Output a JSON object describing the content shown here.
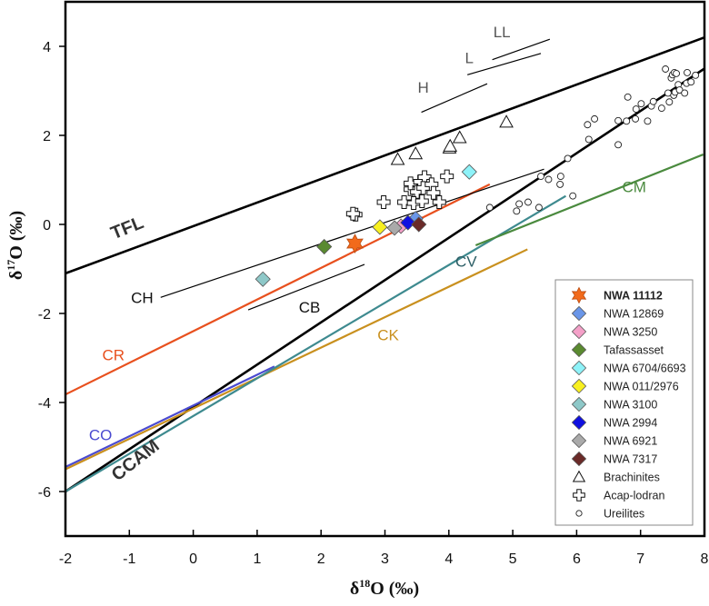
{
  "chart_data": {
    "type": "scatter",
    "title": "",
    "xlabel": "δ18O (‰)",
    "ylabel": "δ17O (‰)",
    "xlabel_main": "δ",
    "xlabel_sup": "18",
    "xlabel_tail": "O (‰)",
    "ylabel_main": "δ",
    "ylabel_sup": "17",
    "ylabel_tail": "O (‰)",
    "xlim": [
      -2,
      8
    ],
    "ylim": [
      -7,
      5
    ],
    "xticks": [
      -2,
      -1,
      0,
      1,
      2,
      3,
      4,
      5,
      6,
      7,
      8
    ],
    "yticks": [
      -6,
      -4,
      -2,
      0,
      2,
      4
    ],
    "grid": false,
    "legend_position": "bottom-right",
    "lines": [
      {
        "name": "TFL",
        "label": "TFL",
        "color": "#000000",
        "bold": true,
        "x": [
          -2,
          8
        ],
        "y": [
          -1.1,
          4.2
        ]
      },
      {
        "name": "CCAM",
        "label": "CCAM",
        "color": "#000000",
        "bold": true,
        "x": [
          -2,
          8
        ],
        "y": [
          -6.0,
          3.5
        ]
      },
      {
        "name": "CR",
        "label": "CR",
        "color": "#e8501e",
        "x": [
          -2,
          4.64
        ],
        "y": [
          -3.82,
          0.9
        ]
      },
      {
        "name": "CO",
        "label": "CO",
        "color": "#4a4ad0",
        "x": [
          -2,
          1.27
        ],
        "y": [
          -5.45,
          -3.19
        ]
      },
      {
        "name": "CK",
        "label": "CK",
        "color": "#c9901e",
        "x": [
          -2,
          5.23
        ],
        "y": [
          -5.5,
          -0.56
        ]
      },
      {
        "name": "CV",
        "label": "CV",
        "color": "#3e8a8f",
        "x": [
          -2,
          5.83
        ],
        "y": [
          -6.0,
          0.64
        ]
      },
      {
        "name": "CM",
        "label": "CM",
        "color": "#4a8a3e",
        "x": [
          4.42,
          7.98
        ],
        "y": [
          -0.47,
          1.57
        ]
      },
      {
        "name": "CH",
        "label": "CH",
        "color": "#000000",
        "thin": true,
        "x": [
          -0.51,
          5.49
        ],
        "y": [
          -1.64,
          1.24
        ]
      },
      {
        "name": "CB",
        "label": "CB",
        "color": "#000000",
        "thin": true,
        "x": [
          0.86,
          2.68
        ],
        "y": [
          -1.92,
          -0.9
        ]
      },
      {
        "name": "H",
        "label": "H",
        "color": "#000000",
        "thin": true,
        "x": [
          3.57,
          4.6
        ],
        "y": [
          2.52,
          3.16
        ]
      },
      {
        "name": "L",
        "label": "L",
        "color": "#000000",
        "thin": true,
        "x": [
          4.29,
          5.44
        ],
        "y": [
          3.36,
          3.84
        ]
      },
      {
        "name": "LL",
        "label": "LL",
        "color": "#000000",
        "thin": true,
        "x": [
          4.68,
          5.58
        ],
        "y": [
          3.7,
          4.16
        ]
      }
    ],
    "line_labels": [
      {
        "text": "TFL",
        "x": -1.0,
        "y": -0.2,
        "color": "#333333",
        "bold": true,
        "rotate": -22
      },
      {
        "text": "CCAM",
        "x": -0.85,
        "y": -5.4,
        "color": "#333333",
        "bold": true,
        "rotate": -38
      },
      {
        "text": "CR",
        "x": -1.25,
        "y": -3.05,
        "color": "#e8501e"
      },
      {
        "text": "CO",
        "x": -1.45,
        "y": -4.85,
        "color": "#4a4ad0"
      },
      {
        "text": "CK",
        "x": 3.05,
        "y": -2.6,
        "color": "#c9901e"
      },
      {
        "text": "CV",
        "x": 4.27,
        "y": -0.95,
        "color": "#2d5f66"
      },
      {
        "text": "CM",
        "x": 6.9,
        "y": 0.72,
        "color": "#4a8a3e"
      },
      {
        "text": "CH",
        "x": -0.8,
        "y": -1.77,
        "color": "#111111"
      },
      {
        "text": "CB",
        "x": 1.82,
        "y": -1.98,
        "color": "#111111"
      },
      {
        "text": "H",
        "x": 3.6,
        "y": 2.96,
        "color": "#555555"
      },
      {
        "text": "L",
        "x": 4.32,
        "y": 3.62,
        "color": "#555555"
      },
      {
        "text": "LL",
        "x": 4.83,
        "y": 4.2,
        "color": "#555555"
      }
    ],
    "series": [
      {
        "name": "NWA 11112",
        "marker": "star",
        "color": "#f26a1b",
        "bold": true,
        "points": [
          [
            2.53,
            -0.43
          ]
        ]
      },
      {
        "name": "NWA 12869",
        "marker": "diamond",
        "color": "#6a96e8",
        "points": [
          [
            3.48,
            0.13
          ]
        ]
      },
      {
        "name": "NWA 3250",
        "marker": "diamond",
        "color": "#f4a0c8",
        "points": [
          [
            3.25,
            -0.04
          ]
        ]
      },
      {
        "name": "Tafassasset",
        "marker": "diamond",
        "color": "#5a8a30",
        "points": [
          [
            2.05,
            -0.5
          ]
        ]
      },
      {
        "name": "NWA 6704/6693",
        "marker": "diamond",
        "color": "#8ef2f8",
        "points": [
          [
            4.32,
            1.18
          ]
        ]
      },
      {
        "name": "NWA 011/2976",
        "marker": "diamond",
        "color": "#f8f020",
        "points": [
          [
            2.92,
            -0.06
          ]
        ]
      },
      {
        "name": "NWA 3100",
        "marker": "diamond",
        "color": "#8ec8c8",
        "points": [
          [
            1.09,
            -1.23
          ]
        ]
      },
      {
        "name": "NWA 2994",
        "marker": "diamond",
        "color": "#1010e0",
        "points": [
          [
            3.36,
            0.04
          ]
        ]
      },
      {
        "name": "NWA 6921",
        "marker": "diamond",
        "color": "#aaaaaa",
        "points": [
          [
            3.15,
            -0.08
          ]
        ]
      },
      {
        "name": "NWA 7317",
        "marker": "diamond",
        "color": "#6a2a28",
        "points": [
          [
            3.53,
            0.0
          ]
        ]
      },
      {
        "name": "Brachinites",
        "marker": "triangle",
        "color": "#ffffff",
        "points": [
          [
            3.2,
            1.46
          ],
          [
            3.48,
            1.59
          ],
          [
            4.01,
            1.72
          ],
          [
            4.02,
            1.76
          ],
          [
            4.17,
            1.95
          ],
          [
            4.9,
            2.3
          ]
        ]
      },
      {
        "name": "Acap-lodran",
        "marker": "cross",
        "color": "#ffffff",
        "points": [
          [
            2.54,
            0.22
          ],
          [
            2.5,
            0.24
          ],
          [
            2.98,
            0.5
          ],
          [
            3.3,
            0.5
          ],
          [
            3.4,
            0.79
          ],
          [
            3.4,
            0.92
          ],
          [
            3.5,
            0.73
          ],
          [
            3.55,
            0.96
          ],
          [
            3.62,
            1.06
          ],
          [
            3.6,
            0.82
          ],
          [
            3.73,
            0.9
          ],
          [
            3.76,
            0.71
          ],
          [
            3.45,
            0.48
          ],
          [
            3.58,
            0.52
          ],
          [
            3.85,
            0.5
          ],
          [
            3.97,
            1.08
          ]
        ]
      },
      {
        "name": "Ureilites",
        "marker": "circle",
        "color": "#ffffff",
        "points": [
          [
            4.64,
            0.38
          ],
          [
            5.06,
            0.3
          ],
          [
            5.1,
            0.46
          ],
          [
            5.24,
            0.5
          ],
          [
            5.41,
            0.38
          ],
          [
            5.44,
            1.08
          ],
          [
            5.56,
            1.01
          ],
          [
            5.74,
            0.9
          ],
          [
            5.75,
            1.08
          ],
          [
            5.86,
            1.48
          ],
          [
            5.94,
            0.64
          ],
          [
            6.17,
            2.24
          ],
          [
            6.19,
            1.91
          ],
          [
            6.28,
            2.37
          ],
          [
            6.65,
            1.79
          ],
          [
            6.65,
            2.33
          ],
          [
            6.78,
            2.32
          ],
          [
            6.8,
            2.86
          ],
          [
            6.92,
            2.37
          ],
          [
            6.93,
            2.59
          ],
          [
            7.01,
            2.71
          ],
          [
            7.11,
            2.32
          ],
          [
            7.17,
            2.66
          ],
          [
            7.2,
            2.76
          ],
          [
            7.33,
            2.61
          ],
          [
            7.39,
            3.49
          ],
          [
            7.43,
            2.95
          ],
          [
            7.45,
            2.75
          ],
          [
            7.48,
            3.29
          ],
          [
            7.5,
            3.36
          ],
          [
            7.52,
            2.9
          ],
          [
            7.53,
            3.41
          ],
          [
            7.56,
            3.39
          ],
          [
            7.54,
            2.97
          ],
          [
            7.59,
            3.14
          ],
          [
            7.61,
            3.02
          ],
          [
            7.69,
            2.95
          ],
          [
            7.73,
            3.41
          ],
          [
            7.72,
            3.17
          ],
          [
            7.79,
            3.2
          ],
          [
            7.86,
            3.35
          ]
        ]
      }
    ]
  }
}
